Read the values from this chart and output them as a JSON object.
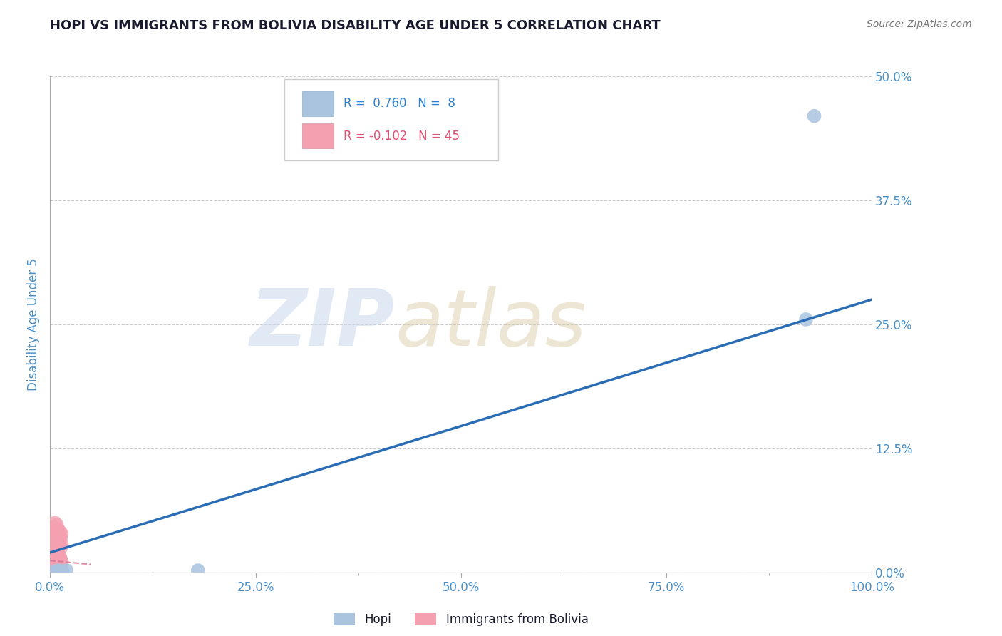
{
  "title": "HOPI VS IMMIGRANTS FROM BOLIVIA DISABILITY AGE UNDER 5 CORRELATION CHART",
  "source": "Source: ZipAtlas.com",
  "ylabel": "Disability Age Under 5",
  "xlim": [
    0.0,
    1.0
  ],
  "ylim": [
    0.0,
    0.5
  ],
  "yticks": [
    0.0,
    0.125,
    0.25,
    0.375,
    0.5
  ],
  "xtick_positions": [
    0.0,
    0.25,
    0.5,
    0.75,
    1.0
  ],
  "xtick_minor_positions": [
    0.125,
    0.375,
    0.625,
    0.875
  ],
  "hopi_R": 0.76,
  "hopi_N": 8,
  "bolivia_R": -0.102,
  "bolivia_N": 45,
  "hopi_color": "#aac4e0",
  "hopi_line_color": "#2a6db5",
  "bolivia_color": "#f4a0b0",
  "bolivia_line_color": "#d47090",
  "hopi_points_x": [
    0.93,
    0.92,
    0.18,
    0.01,
    0.02,
    0.015,
    0.01,
    0.005
  ],
  "hopi_points_y": [
    0.46,
    0.255,
    0.002,
    0.002,
    0.002,
    0.001,
    0.001,
    0.001
  ],
  "bolivia_points_x": [
    0.005,
    0.006,
    0.007,
    0.008,
    0.009,
    0.01,
    0.011,
    0.012,
    0.013,
    0.014,
    0.005,
    0.006,
    0.007,
    0.008,
    0.009,
    0.01,
    0.011,
    0.012,
    0.013,
    0.014,
    0.005,
    0.006,
    0.007,
    0.008,
    0.009,
    0.01,
    0.011,
    0.012,
    0.013,
    0.014,
    0.005,
    0.006,
    0.007,
    0.008,
    0.009,
    0.01,
    0.011,
    0.012,
    0.013,
    0.014,
    0.005,
    0.006,
    0.007,
    0.008,
    0.009
  ],
  "bolivia_points_y": [
    0.003,
    0.007,
    0.005,
    0.009,
    0.004,
    0.008,
    0.003,
    0.006,
    0.005,
    0.004,
    0.02,
    0.025,
    0.018,
    0.022,
    0.015,
    0.019,
    0.012,
    0.016,
    0.013,
    0.011,
    0.035,
    0.04,
    0.032,
    0.038,
    0.028,
    0.033,
    0.027,
    0.031,
    0.025,
    0.029,
    0.045,
    0.05,
    0.042,
    0.048,
    0.038,
    0.043,
    0.037,
    0.041,
    0.035,
    0.039,
    0.002,
    0.003,
    0.001,
    0.002,
    0.003
  ],
  "hopi_line_x": [
    0.0,
    1.0
  ],
  "hopi_line_y": [
    0.02,
    0.275
  ],
  "bolivia_line_x": [
    0.0,
    0.05
  ],
  "bolivia_line_y": [
    0.012,
    0.008
  ],
  "watermark_zip": "ZIP",
  "watermark_atlas": "atlas",
  "background_color": "#ffffff",
  "grid_color": "#cccccc",
  "title_color": "#1a1a2e",
  "axis_label_color": "#4a90c8",
  "tick_label_color": "#4a90c8",
  "legend_R_color_hopi": "#2a7fd4",
  "legend_R_color_bolivia": "#e05070",
  "figsize": [
    14.06,
    8.92
  ],
  "dpi": 100
}
